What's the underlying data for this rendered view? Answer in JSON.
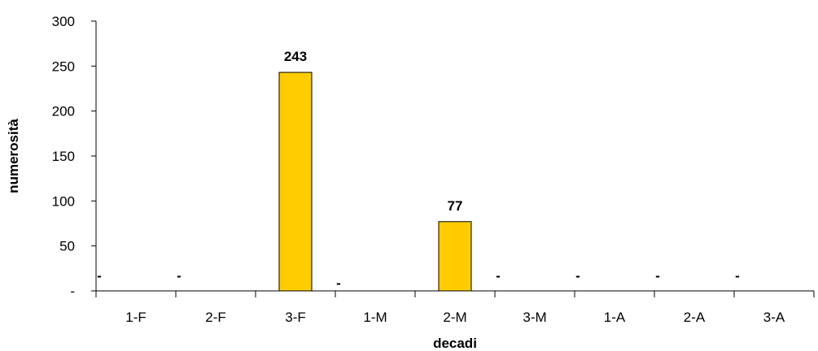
{
  "chart_data": {
    "type": "bar",
    "categories": [
      "1-F",
      "2-F",
      "3-F",
      "1-M",
      "2-M",
      "3-M",
      "1-A",
      "2-A",
      "3-A"
    ],
    "values": [
      0,
      0,
      243,
      0,
      77,
      0,
      0,
      0,
      0
    ],
    "data_labels": [
      "-",
      "-",
      "243",
      "-",
      "77",
      "-",
      "-",
      "-",
      "-"
    ],
    "xlabel": "decadi",
    "ylabel": "numerosità",
    "ylim": [
      0,
      300
    ],
    "yticks": [
      0,
      50,
      100,
      150,
      200,
      250,
      300
    ],
    "ytick_labels": [
      "-",
      "50",
      "100",
      "150",
      "200",
      "250",
      "300"
    ],
    "grid": false,
    "legend": "none",
    "bar_color": "#FFCC00",
    "bar_edge_color": "#000000"
  }
}
